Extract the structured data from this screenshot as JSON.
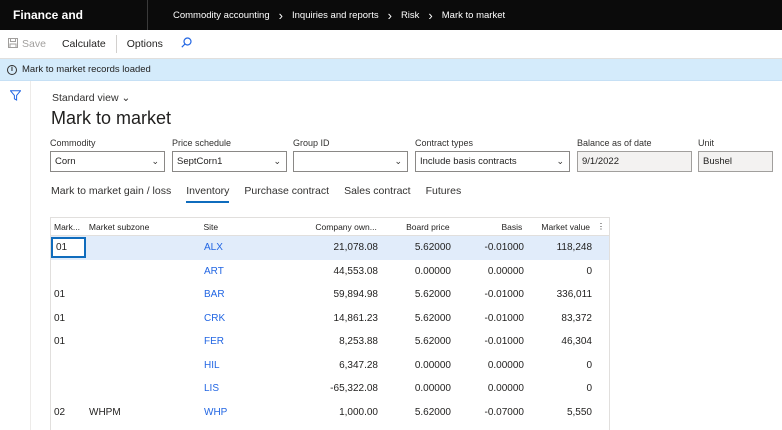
{
  "app": {
    "title": "Finance and Operations"
  },
  "breadcrumb": [
    "Commodity accounting",
    "Inquiries and reports",
    "Risk",
    "Mark to market"
  ],
  "actions": {
    "save": "Save",
    "calculate": "Calculate",
    "options": "Options"
  },
  "message": "Mark to market records loaded",
  "view": "Standard view",
  "page_title": "Mark to market",
  "fields": {
    "commodity": {
      "label": "Commodity",
      "value": "Corn"
    },
    "price_schedule": {
      "label": "Price schedule",
      "value": "SeptCorn1"
    },
    "group_id": {
      "label": "Group ID",
      "value": ""
    },
    "contract_types": {
      "label": "Contract types",
      "value": "Include basis contracts"
    },
    "balance_date": {
      "label": "Balance as of date",
      "value": "9/1/2022"
    },
    "unit": {
      "label": "Unit",
      "value": "Bushel"
    }
  },
  "tabs": [
    "Mark to market gain / loss",
    "Inventory",
    "Purchase contract",
    "Sales contract",
    "Futures"
  ],
  "active_tab": "Inventory",
  "grid": {
    "headers": [
      "Mark...",
      "Market subzone",
      "Site",
      "Company own...",
      "Board price",
      "Basis",
      "Market value"
    ],
    "rows": [
      [
        "01",
        "",
        "ALX",
        "21,078.08",
        "5.62000",
        "-0.01000",
        "118,248"
      ],
      [
        "",
        "",
        "ART",
        "44,553.08",
        "0.00000",
        "0.00000",
        "0"
      ],
      [
        "01",
        "",
        "BAR",
        "59,894.98",
        "5.62000",
        "-0.01000",
        "336,011"
      ],
      [
        "01",
        "",
        "CRK",
        "14,861.23",
        "5.62000",
        "-0.01000",
        "83,372"
      ],
      [
        "01",
        "",
        "FER",
        "8,253.88",
        "5.62000",
        "-0.01000",
        "46,304"
      ],
      [
        "",
        "",
        "HIL",
        "6,347.28",
        "0.00000",
        "0.00000",
        "0"
      ],
      [
        "",
        "",
        "LIS",
        "-65,322.08",
        "0.00000",
        "0.00000",
        "0"
      ],
      [
        "02",
        "WHPM",
        "WHP",
        "1,000.00",
        "5.62000",
        "-0.07000",
        "5,550"
      ]
    ]
  },
  "colors": {
    "accent": "#0f6cbd",
    "link": "#2266e3",
    "topbar": "#0b0b0b",
    "message_bg": "#d4ebfb"
  },
  "icons": [
    "save-icon",
    "search-icon",
    "info-icon",
    "filter-icon",
    "chevron-down-icon",
    "more-vertical-icon",
    "chevron-right-icon"
  ]
}
